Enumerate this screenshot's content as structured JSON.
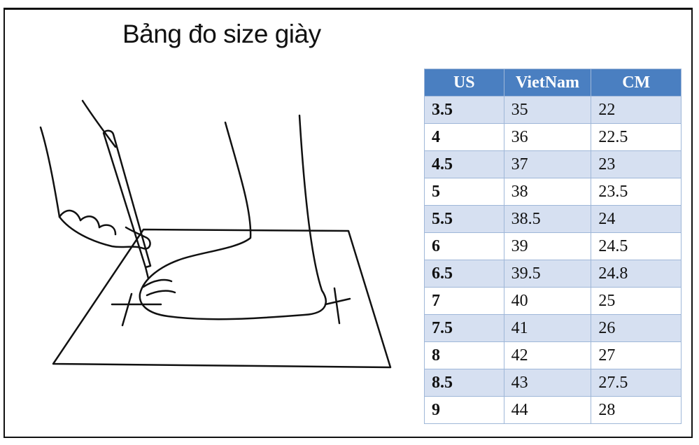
{
  "title": "Bảng đo size giày",
  "colors": {
    "header_bg": "#4a7fc1",
    "alt_row_bg": "#d6e0f1"
  },
  "illustration": "hand-tracing-foot-on-paper",
  "table": {
    "headers": [
      "US",
      "VietNam",
      "CM"
    ],
    "rows": [
      [
        "3.5",
        "35",
        "22"
      ],
      [
        "4",
        "36",
        "22.5"
      ],
      [
        "4.5",
        "37",
        "23"
      ],
      [
        "5",
        "38",
        "23.5"
      ],
      [
        "5.5",
        "38.5",
        "24"
      ],
      [
        "6",
        "39",
        "24.5"
      ],
      [
        "6.5",
        "39.5",
        "24.8"
      ],
      [
        "7",
        "40",
        "25"
      ],
      [
        "7.5",
        "41",
        "26"
      ],
      [
        "8",
        "42",
        "27"
      ],
      [
        "8.5",
        "43",
        "27.5"
      ],
      [
        "9",
        "44",
        "28"
      ]
    ]
  }
}
